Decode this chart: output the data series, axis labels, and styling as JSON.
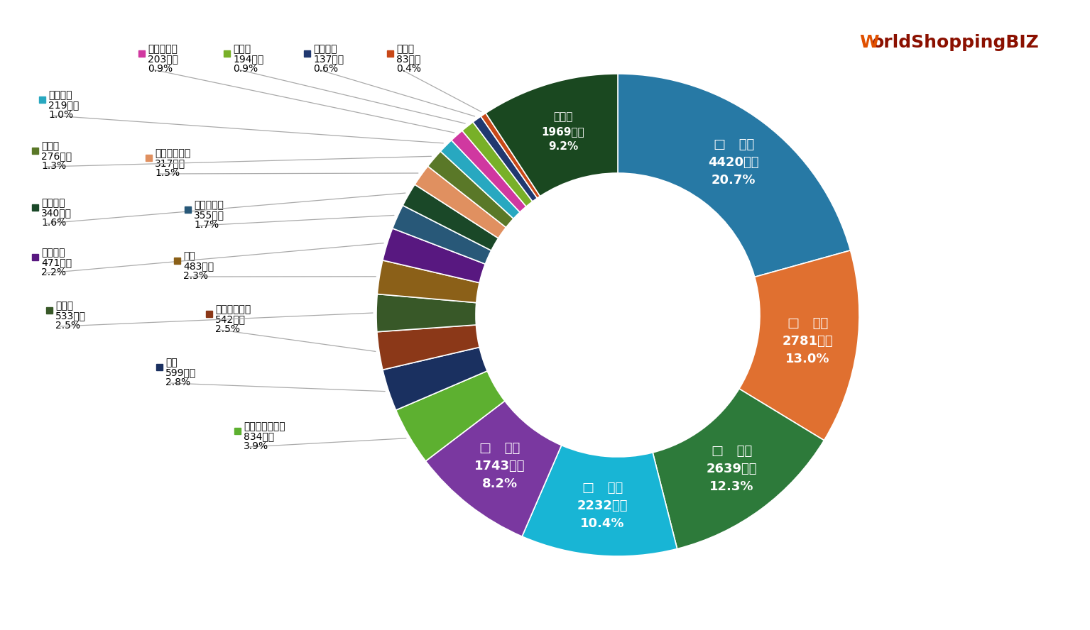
{
  "segments": [
    {
      "label": "中国",
      "value": 4420,
      "pct": "20.7%",
      "color": "#2779a5",
      "inside": true,
      "marker": "□"
    },
    {
      "label": "米国",
      "value": 2781,
      "pct": "13.0%",
      "color": "#e07030",
      "inside": true,
      "marker": "□"
    },
    {
      "label": "台湾",
      "value": 2639,
      "pct": "12.3%",
      "color": "#2d7a3a",
      "inside": true,
      "marker": "□"
    },
    {
      "label": "韓国",
      "value": 2232,
      "pct": "10.4%",
      "color": "#18b5d5",
      "inside": true,
      "marker": "□"
    },
    {
      "label": "香港",
      "value": 1743,
      "pct": "8.2%",
      "color": "#7a38a0",
      "inside": true,
      "marker": "□"
    },
    {
      "label": "オーストラリア",
      "value": 834,
      "pct": "3.9%",
      "color": "#5db030",
      "inside": false,
      "marker": "■"
    },
    {
      "label": "タイ",
      "value": 599,
      "pct": "2.8%",
      "color": "#1a3060",
      "inside": false,
      "marker": "■"
    },
    {
      "label": "シンガポール",
      "value": 542,
      "pct": "2.5%",
      "color": "#8b3818",
      "inside": false,
      "marker": "■"
    },
    {
      "label": "カナダ",
      "value": 533,
      "pct": "2.5%",
      "color": "#385828",
      "inside": false,
      "marker": "■"
    },
    {
      "label": "英国",
      "value": 483,
      "pct": "2.3%",
      "color": "#8b6018",
      "inside": false,
      "marker": "■"
    },
    {
      "label": "フランス",
      "value": 471,
      "pct": "2.2%",
      "color": "#581880",
      "inside": false,
      "marker": "■"
    },
    {
      "label": "フィリピン",
      "value": 355,
      "pct": "1.7%",
      "color": "#285878",
      "inside": false,
      "marker": "■"
    },
    {
      "label": "ベトナム",
      "value": 340,
      "pct": "1.6%",
      "color": "#1a4828",
      "inside": false,
      "marker": "■"
    },
    {
      "label": "インドネシア",
      "value": 317,
      "pct": "1.5%",
      "color": "#e09060",
      "inside": false,
      "marker": "■"
    },
    {
      "label": "ドイツ",
      "value": 276,
      "pct": "1.3%",
      "color": "#5a7828",
      "inside": false,
      "marker": "■"
    },
    {
      "label": "イタリア",
      "value": 219,
      "pct": "1.0%",
      "color": "#28a8c0",
      "inside": false,
      "marker": "■"
    },
    {
      "label": "マレーシア",
      "value": 203,
      "pct": "0.9%",
      "color": "#d038a0",
      "inside": false,
      "marker": "■"
    },
    {
      "label": "インド",
      "value": 194,
      "pct": "0.9%",
      "color": "#78b028",
      "inside": false,
      "marker": "■"
    },
    {
      "label": "スペイン",
      "value": 137,
      "pct": "0.6%",
      "color": "#203870",
      "inside": false,
      "marker": "■"
    },
    {
      "label": "ロシア",
      "value": 83,
      "pct": "0.4%",
      "color": "#c84818",
      "inside": false,
      "marker": "■"
    },
    {
      "label": "その他",
      "value": 1969,
      "pct": "9.2%",
      "color": "#1a4820",
      "inside": true,
      "marker": "□"
    }
  ],
  "background": "#ffffff",
  "annotations": [
    {
      "idx": 5,
      "col": 2,
      "row": 9,
      "label": "オーストラリア",
      "value": "834億円",
      "pct": "3.9%",
      "color": "#5db030"
    },
    {
      "idx": 6,
      "col": 1,
      "row": 7,
      "label": "タイ",
      "value": "599億円",
      "pct": "2.8%",
      "color": "#1a3060"
    },
    {
      "idx": 7,
      "col": 2,
      "row": 7,
      "label": "シンガポール",
      "value": "542億円",
      "pct": "2.5%",
      "color": "#8b3818"
    },
    {
      "idx": 8,
      "col": 0,
      "row": 7,
      "label": "カナダ",
      "value": "533億円",
      "pct": "2.5%",
      "color": "#385828"
    },
    {
      "idx": 9,
      "col": 2,
      "row": 6,
      "label": "英国",
      "value": "483億円",
      "pct": "2.3%",
      "color": "#8b6018"
    },
    {
      "idx": 10,
      "col": 0,
      "row": 6,
      "label": "フランス",
      "value": "471億円",
      "pct": "2.2%",
      "color": "#581880"
    },
    {
      "idx": 11,
      "col": 2,
      "row": 5,
      "label": "フィリピン",
      "value": "355億円",
      "pct": "1.7%",
      "color": "#285878"
    },
    {
      "idx": 12,
      "col": 0,
      "row": 5,
      "label": "ベトナム",
      "value": "340億円",
      "pct": "1.6%",
      "color": "#1a4828"
    },
    {
      "idx": 13,
      "col": 2,
      "row": 4,
      "label": "インドネシア",
      "value": "317億円",
      "pct": "1.5%",
      "color": "#e09060"
    },
    {
      "idx": 14,
      "col": 0,
      "row": 4,
      "label": "ドイツ",
      "value": "276億円",
      "pct": "1.3%",
      "color": "#5a7828"
    },
    {
      "idx": 15,
      "col": 0,
      "row": 3,
      "label": "イタリア",
      "value": "219億円",
      "pct": "1.0%",
      "color": "#28a8c0"
    },
    {
      "idx": 16,
      "col": 1,
      "row": 2,
      "label": "マレーシア",
      "value": "203億円",
      "pct": "0.9%",
      "color": "#d038a0"
    },
    {
      "idx": 17,
      "col": 2,
      "row": 2,
      "label": "インド",
      "value": "194億円",
      "pct": "0.9%",
      "color": "#78b028"
    },
    {
      "idx": 18,
      "col": 3,
      "row": 2,
      "label": "スペイン",
      "value": "137億円",
      "pct": "0.6%",
      "color": "#203870"
    },
    {
      "idx": 19,
      "col": 4,
      "row": 2,
      "label": "ロシア",
      "value": "83億円",
      "pct": "0.4%",
      "color": "#c84818"
    }
  ]
}
